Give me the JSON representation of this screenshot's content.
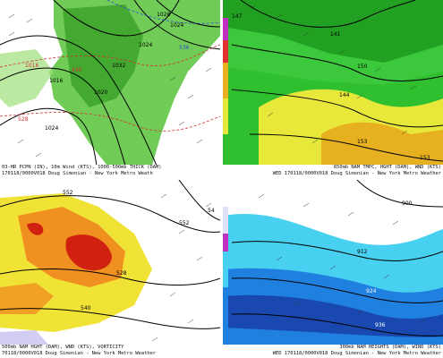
{
  "colors": {
    "precip": "#57c23a",
    "precip_light": "#9fe07a",
    "temp_green": "#2fbf2f",
    "temp_yellow": "#e8e83a",
    "temp_orange": "#e6b020",
    "vort_yellow": "#f0e020",
    "vort_orange": "#f09020",
    "vort_red": "#d02010",
    "jet_cyan": "#48d0f0",
    "jet_blue": "#2080e0",
    "jet_navy": "#1848b0",
    "contour": "#000000",
    "thickness_red": "#d03030",
    "thickness_blue": "#3050d0"
  },
  "panels": [
    {
      "id": "precip",
      "caption_line1": "03-HR PCPN (IN), 10m Wind (KTS), 1000-500mb THICK (DAM)",
      "caption_line2": "170118/0000V018 Doug Simonian - New York Metro Weath",
      "labels": [
        "1028",
        "1024",
        "1032",
        "1020",
        "1016",
        "1016",
        "1024",
        "540",
        "536",
        "528",
        "1024"
      ]
    },
    {
      "id": "temp850",
      "caption_line1": "850mb NAM TMPC, HGHT (DAM), WND (KTS)",
      "caption_line2": "WED 170118/0000V018 Doug Simonian - New York Metro Weather",
      "labels": [
        "147",
        "150",
        "141",
        "144",
        "153",
        "153"
      ]
    },
    {
      "id": "vort500",
      "caption_line1": "500mb NAM HGHT (DAM), WND (KTS), VORTICITY",
      "caption_line2": "70118/0000V018 Doug Simonian - New York Metro Weather",
      "labels": [
        "552",
        "552",
        "528",
        "540",
        "54"
      ]
    },
    {
      "id": "jet300",
      "caption_line1": "300mb NAM HEIGHTS (DAM), WIND (KTS)",
      "caption_line2": "WED 170118/0000V018 Doug Simonian - New York Metro Weather",
      "labels": [
        "900",
        "912",
        "924",
        "936"
      ]
    }
  ]
}
